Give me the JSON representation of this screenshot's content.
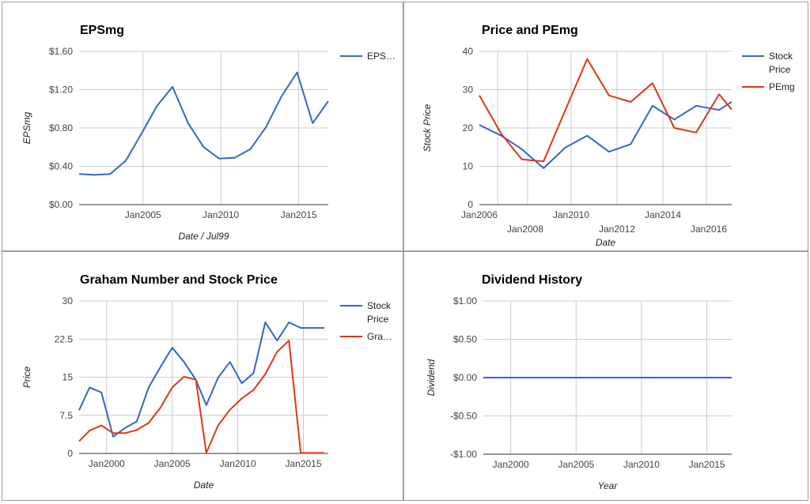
{
  "charts": [
    {
      "id": "p1",
      "chart_data": {
        "type": "line",
        "title": "EPSmg",
        "xlabel": "Date / Jul99",
        "ylabel": "EPSmg",
        "xlim": [
          2000.9,
          2016.9
        ],
        "ylim": [
          0,
          1.6
        ],
        "yticks": [
          0,
          0.4,
          0.8,
          1.2,
          1.6
        ],
        "ytick_labels": [
          "$0.00",
          "$0.40",
          "$0.80",
          "$1.20",
          "$1.60"
        ],
        "xticks": [
          2005,
          2010,
          2015
        ],
        "xtick_labels": [
          "Jan2005",
          "Jan2010",
          "Jan2015"
        ],
        "vgrid_xs": [
          2005,
          2010,
          2015
        ],
        "legend_position": "right",
        "series": [
          {
            "name": "EPS…",
            "color": "#3366cc",
            "x": [
              2000.9,
              2001.9,
              2002.9,
              2003.9,
              2004.9,
              2005.9,
              2006.9,
              2007.9,
              2008.9,
              2009.9,
              2010.9,
              2011.9,
              2012.9,
              2013.9,
              2014.9,
              2015.9,
              2016.9
            ],
            "y": [
              0.32,
              0.31,
              0.32,
              0.46,
              0.74,
              1.03,
              1.23,
              0.85,
              0.6,
              0.48,
              0.49,
              0.58,
              0.81,
              1.13,
              1.38,
              0.85,
              1.08
            ]
          }
        ]
      }
    },
    {
      "id": "p2",
      "chart_data": {
        "type": "line",
        "title": "Price and PEmg",
        "xlabel": "Date",
        "ylabel": "Stock Price",
        "xlim": [
          2006,
          2017
        ],
        "ylim": [
          0,
          40
        ],
        "yticks": [
          0,
          10,
          20,
          30,
          40
        ],
        "ytick_labels": [
          "0",
          "10",
          "20",
          "30",
          "40"
        ],
        "xticks": [
          2006,
          2008,
          2010,
          2012,
          2014,
          2016
        ],
        "xtick_labels": [
          "Jan2006",
          "Jan2008",
          "Jan2010",
          "Jan2012",
          "Jan2014",
          "Jan2016"
        ],
        "vgrid_xs": [
          2006.8,
          2008.1,
          2010,
          2012,
          2014,
          2015.9
        ],
        "staggered_ticks": true,
        "legend_position": "right",
        "series": [
          {
            "name": "Stock Price",
            "color": "#3366cc",
            "x": [
              2006,
              2006.95,
              2007.85,
              2008.8,
              2009.75,
              2010.7,
              2011.65,
              2012.6,
              2013.55,
              2014.5,
              2015.45,
              2016.45,
              2017
            ],
            "y": [
              20.8,
              18.0,
              14.5,
              9.5,
              14.9,
              18.0,
              13.8,
              15.8,
              25.8,
              22.2,
              25.8,
              24.7,
              26.8
            ]
          },
          {
            "name": "PEmg",
            "color": "#dc3912",
            "x": [
              2006,
              2006.95,
              2007.85,
              2008.8,
              2009.75,
              2010.7,
              2011.65,
              2012.6,
              2013.55,
              2014.5,
              2015.45,
              2016.45,
              2017
            ],
            "y": [
              28.5,
              18.5,
              11.8,
              11.3,
              24.7,
              38.0,
              28.5,
              26.8,
              31.7,
              20.0,
              18.8,
              28.8,
              24.8
            ]
          }
        ]
      }
    },
    {
      "id": "p3",
      "chart_data": {
        "type": "line",
        "title": "Graham Number and Stock Price",
        "xlabel": "Date",
        "ylabel": "Price",
        "xlim": [
          1997.9,
          2016.9
        ],
        "ylim": [
          0,
          30
        ],
        "yticks": [
          0,
          7.5,
          15,
          22.5,
          30
        ],
        "ytick_labels": [
          "0",
          "7.5",
          "15",
          "22.5",
          "30"
        ],
        "xticks": [
          2000,
          2005,
          2010,
          2015
        ],
        "xtick_labels": [
          "Jan2000",
          "Jan2005",
          "Jan2010",
          "Jan2015"
        ],
        "vgrid_xs": [
          2000,
          2005,
          2010,
          2015
        ],
        "legend_position": "right",
        "series": [
          {
            "name": "Stock Price",
            "color": "#3366cc",
            "x": [
              1997.9,
              1998.7,
              1999.6,
              2000.5,
              2001.4,
              2002.3,
              2003.2,
              2004.1,
              2005.0,
              2005.9,
              2006.8,
              2007.6,
              2008.5,
              2009.4,
              2010.3,
              2011.2,
              2012.1,
              2013.0,
              2013.9,
              2014.8,
              2015.7,
              2016.6
            ],
            "y": [
              8.5,
              13.0,
              12.0,
              3.3,
              5.0,
              6.3,
              13.0,
              17.0,
              20.8,
              18.0,
              14.5,
              9.5,
              14.9,
              18.0,
              13.8,
              15.8,
              25.8,
              22.2,
              25.8,
              24.7,
              24.7,
              24.7
            ]
          },
          {
            "name": "Gra…",
            "color": "#dc3912",
            "x": [
              1997.9,
              1998.7,
              1999.6,
              2000.5,
              2001.4,
              2002.3,
              2003.2,
              2004.1,
              2005.0,
              2005.9,
              2006.8,
              2007.6,
              2008.5,
              2009.4,
              2010.3,
              2011.2,
              2012.1,
              2013.0,
              2013.9,
              2014.8,
              2015.7,
              2016.6
            ],
            "y": [
              2.4,
              4.5,
              5.5,
              4.0,
              4.0,
              4.6,
              6.0,
              9.0,
              13.0,
              15.1,
              14.5,
              0.1,
              5.5,
              8.6,
              10.8,
              12.5,
              15.6,
              20.0,
              22.2,
              0.1,
              0.1,
              0.1
            ]
          }
        ]
      }
    },
    {
      "id": "p4",
      "chart_data": {
        "type": "line",
        "title": "Dividend History",
        "xlabel": "Year",
        "ylabel": "Dividend",
        "xlim": [
          1997.9,
          2016.9
        ],
        "ylim": [
          -1,
          1
        ],
        "yticks": [
          -1,
          -0.5,
          0,
          0.5,
          1
        ],
        "ytick_labels": [
          "-$1.00",
          "-$0.50",
          "$0.00",
          "$0.50",
          "$1.00"
        ],
        "xticks": [
          2000,
          2005,
          2010,
          2015
        ],
        "xtick_labels": [
          "Jan2000",
          "Jan2005",
          "Jan2010",
          "Jan2015"
        ],
        "vgrid_xs": [
          2000,
          2005,
          2010,
          2015
        ],
        "legend_position": "none",
        "series": [
          {
            "name": "",
            "color": "#3366cc",
            "x": [
              1997.9,
              2016.9
            ],
            "y": [
              0,
              0
            ]
          }
        ]
      }
    }
  ]
}
